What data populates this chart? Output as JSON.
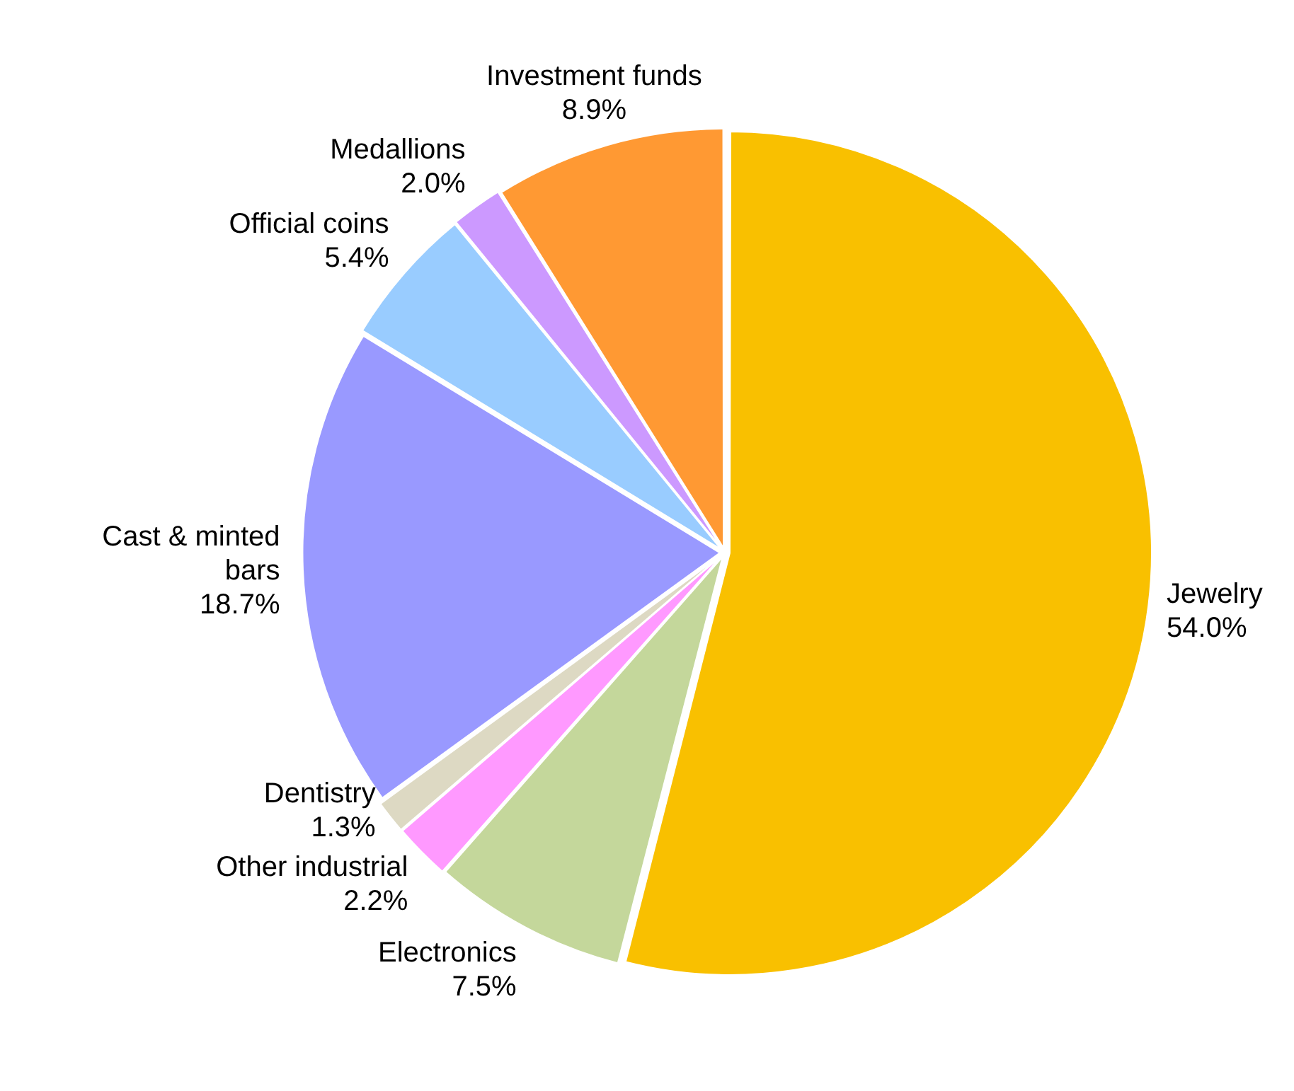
{
  "chart_data": {
    "type": "pie",
    "categories": [
      "Jewelry",
      "Electronics",
      "Other industrial",
      "Dentistry",
      "Cast & minted bars",
      "Official coins",
      "Medallions",
      "Investment funds"
    ],
    "values": [
      54.0,
      7.5,
      2.2,
      1.3,
      18.7,
      5.4,
      2.0,
      8.9
    ],
    "value_labels": [
      "54.0%",
      "7.5%",
      "2.2%",
      "1.3%",
      "18.7%",
      "5.4%",
      "2.0%",
      "8.9%"
    ],
    "colors": [
      "#f9c000",
      "#c4d79b",
      "#ff99ff",
      "#ddd9c3",
      "#9999ff",
      "#99ccff",
      "#cc99ff",
      "#ff9933"
    ],
    "legend": false
  }
}
